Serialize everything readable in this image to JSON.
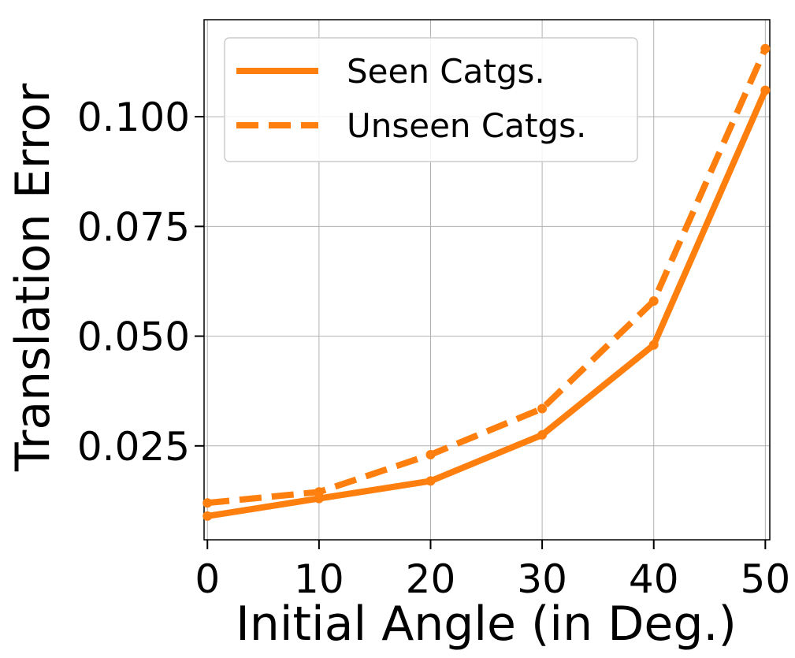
{
  "chart_data": {
    "type": "line",
    "title": "",
    "xlabel": "Initial Angle (in Deg.)",
    "ylabel": "Translation Error",
    "x": [
      0,
      10,
      20,
      30,
      40,
      50
    ],
    "x_ticks": [
      "0",
      "10",
      "20",
      "30",
      "40",
      "50"
    ],
    "y_ticks": [
      "0.025",
      "0.050",
      "0.075",
      "0.100"
    ],
    "xlim": [
      -0.3,
      50.4
    ],
    "ylim": [
      0.0036,
      0.1221
    ],
    "grid": true,
    "legend_position": "top-left",
    "series": [
      {
        "name": "Seen Catgs.",
        "values": [
          0.009,
          0.013,
          0.017,
          0.0275,
          0.048,
          0.106
        ],
        "color": "#ff7f0e",
        "line_style": "solid"
      },
      {
        "name": "Unseen Catgs.",
        "values": [
          0.012,
          0.0145,
          0.023,
          0.0335,
          0.058,
          0.1155
        ],
        "color": "#ff7f0e",
        "line_style": "dashed"
      }
    ]
  }
}
